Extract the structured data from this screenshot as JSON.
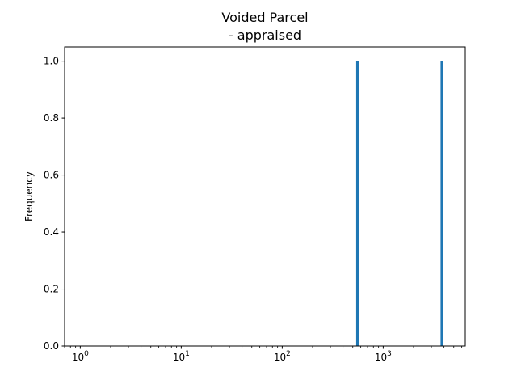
{
  "chart_data": {
    "type": "bar",
    "title": "Voided Parcel\n - appraised",
    "title_lines": [
      "Voided Parcel",
      " - appraised"
    ],
    "xlabel": "",
    "ylabel": "Frequency",
    "x_scale": "log",
    "xlim": [
      0.7,
      6500
    ],
    "ylim": [
      0,
      1.05
    ],
    "x_ticks": [
      {
        "value": 1,
        "label": "10",
        "exp": "0"
      },
      {
        "value": 10,
        "label": "10",
        "exp": "1"
      },
      {
        "value": 100,
        "label": "10",
        "exp": "2"
      },
      {
        "value": 1000,
        "label": "10",
        "exp": "3"
      }
    ],
    "y_ticks": [
      {
        "value": 0.0,
        "label": "0.0"
      },
      {
        "value": 0.2,
        "label": "0.2"
      },
      {
        "value": 0.4,
        "label": "0.4"
      },
      {
        "value": 0.6,
        "label": "0.6"
      },
      {
        "value": 0.8,
        "label": "0.8"
      },
      {
        "value": 1.0,
        "label": "1.0"
      }
    ],
    "bars": [
      {
        "x0": 540,
        "x1": 580,
        "value": 1
      },
      {
        "x0": 3700,
        "x1": 3950,
        "value": 1
      }
    ],
    "bar_color": "#1f77b4",
    "grid": false,
    "legend": "none"
  }
}
